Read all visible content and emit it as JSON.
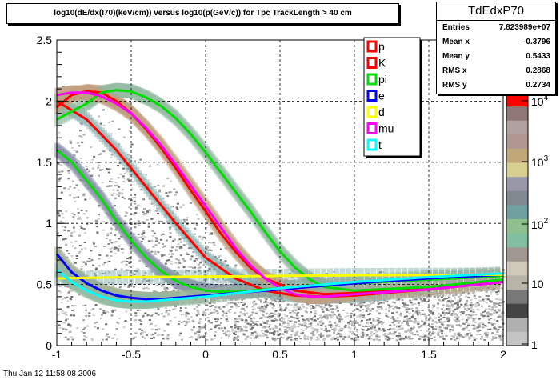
{
  "title": "log10(dE/dx(I70)(keV/cm)) versus log10(p(GeV/c)) for Tpc TrackLength > 40 cm",
  "stats": {
    "name": "TdEdxP70",
    "rows": [
      {
        "label": "Entries",
        "value": "7.823989e+07"
      },
      {
        "label": "Mean x",
        "value": "-0.3796"
      },
      {
        "label": "Mean y",
        "value": "0.5433"
      },
      {
        "label": "RMS x",
        "value": "0.2868"
      },
      {
        "label": "RMS y",
        "value": "0.2734"
      }
    ]
  },
  "footer": "Thu Jan 12 11:58:08 2006",
  "colors": {
    "p": "#ff0000",
    "K": "#ff0000",
    "pi": "#00dd00",
    "e": "#0000ff",
    "d": "#ffff00",
    "mu": "#ff00ff",
    "t": "#00ffff"
  },
  "chart_data": {
    "type": "heatmap",
    "xlim": [
      -1,
      2
    ],
    "ylim": [
      0,
      2.5
    ],
    "x_ticks": [
      "-1",
      "-0.5",
      "0",
      "0.5",
      "1",
      "1.5",
      "2"
    ],
    "y_ticks": [
      "0",
      "0.5",
      "1",
      "1.5",
      "2",
      "2.5"
    ],
    "grid": true,
    "z_scale": "log",
    "z_ticks": [
      "1",
      "10",
      "10^2",
      "10^3",
      "10^4"
    ],
    "legend": {
      "placement": "top-right",
      "entries": [
        "p",
        "K",
        "pi",
        "e",
        "d",
        "mu",
        "t"
      ]
    },
    "palette": [
      "#c4c4c4",
      "#b0b0b0",
      "#444444",
      "#787878",
      "#b8b4a8",
      "#d0c8b8",
      "#a09890",
      "#80c0a0",
      "#90c090",
      "#70a0a0",
      "#808890",
      "#9898a8",
      "#d8d090",
      "#c0a878",
      "#b09890",
      "#b0a0a0",
      "#907878",
      "#ff0000"
    ],
    "series": [
      {
        "name": "p",
        "x": [
          -1,
          -0.8,
          -0.6,
          -0.4,
          -0.2,
          0,
          0.2,
          0.4,
          0.6,
          0.8,
          1,
          1.2,
          1.5,
          2
        ],
        "y": [
          2.0,
          1.85,
          1.6,
          1.3,
          1.0,
          0.72,
          0.55,
          0.45,
          0.41,
          0.4,
          0.41,
          0.43,
          0.46,
          0.52
        ]
      },
      {
        "name": "K",
        "x": [
          -1,
          -0.9,
          -0.8,
          -0.7,
          -0.6,
          -0.5,
          -0.4,
          -0.3,
          -0.2,
          -0.1,
          0,
          0.1,
          0.2,
          0.3,
          0.4,
          0.6,
          0.8,
          1,
          1.5,
          2
        ],
        "y": [
          1.95,
          2.05,
          2.08,
          2.07,
          2.0,
          1.9,
          1.77,
          1.62,
          1.45,
          1.27,
          1.1,
          0.92,
          0.77,
          0.64,
          0.55,
          0.45,
          0.42,
          0.43,
          0.47,
          0.53
        ]
      },
      {
        "name": "pi",
        "x": [
          -1,
          -0.8,
          -0.7,
          -0.6,
          -0.5,
          -0.4,
          -0.3,
          -0.2,
          -0.1,
          0,
          0.1,
          0.2,
          0.3,
          0.4,
          0.5,
          0.6,
          0.7,
          0.8,
          1,
          1.5,
          2
        ],
        "y": [
          1.85,
          1.98,
          2.07,
          2.09,
          2.08,
          2.03,
          1.96,
          1.86,
          1.73,
          1.58,
          1.42,
          1.26,
          1.1,
          0.93,
          0.77,
          0.64,
          0.54,
          0.48,
          0.45,
          0.48,
          0.54
        ]
      },
      {
        "name": "pi",
        "x": [
          -1,
          -0.9,
          -0.8,
          -0.7,
          -0.6,
          -0.5,
          -0.4,
          -0.3,
          -0.2,
          -0.1,
          0,
          0.1,
          0.2,
          0.3,
          0.4,
          0.6,
          1,
          1.5,
          2
        ],
        "y": [
          1.6,
          1.5,
          1.35,
          1.2,
          1.02,
          0.86,
          0.72,
          0.61,
          0.53,
          0.48,
          0.45,
          0.44,
          0.44,
          0.45,
          0.46,
          0.48,
          0.51,
          0.54,
          0.57
        ]
      },
      {
        "name": "e",
        "x": [
          -1,
          -0.9,
          -0.8,
          -0.7,
          -0.6,
          -0.5,
          -0.4,
          -0.3,
          -0.2,
          0,
          0.5,
          1,
          1.5,
          2
        ],
        "y": [
          0.75,
          0.6,
          0.51,
          0.45,
          0.41,
          0.39,
          0.38,
          0.38,
          0.39,
          0.41,
          0.46,
          0.51,
          0.55,
          0.58
        ]
      },
      {
        "name": "d",
        "x": [
          -1,
          -0.5,
          0,
          0.5,
          1,
          1.5,
          2
        ],
        "y": [
          0.55,
          0.56,
          0.565,
          0.57,
          0.575,
          0.578,
          0.58
        ]
      },
      {
        "name": "mu",
        "x": [
          -1,
          -0.9,
          -0.8,
          -0.7,
          -0.6,
          -0.5,
          -0.4,
          -0.3,
          -0.2,
          -0.1,
          0,
          0.1,
          0.2,
          0.3,
          0.4,
          0.5,
          0.6,
          0.7,
          0.8,
          1,
          1.5,
          2
        ],
        "y": [
          2.05,
          2.07,
          2.07,
          2.04,
          1.98,
          1.9,
          1.78,
          1.64,
          1.48,
          1.31,
          1.14,
          0.97,
          0.8,
          0.66,
          0.55,
          0.47,
          0.42,
          0.4,
          0.4,
          0.42,
          0.46,
          0.52
        ]
      },
      {
        "name": "t",
        "x": [
          -1,
          -0.9,
          -0.8,
          -0.7,
          -0.6,
          -0.5,
          -0.4,
          -0.3,
          0,
          0.5,
          1,
          1.5,
          2
        ],
        "y": [
          0.62,
          0.52,
          0.45,
          0.4,
          0.37,
          0.36,
          0.36,
          0.37,
          0.4,
          0.47,
          0.52,
          0.56,
          0.59
        ]
      }
    ]
  }
}
